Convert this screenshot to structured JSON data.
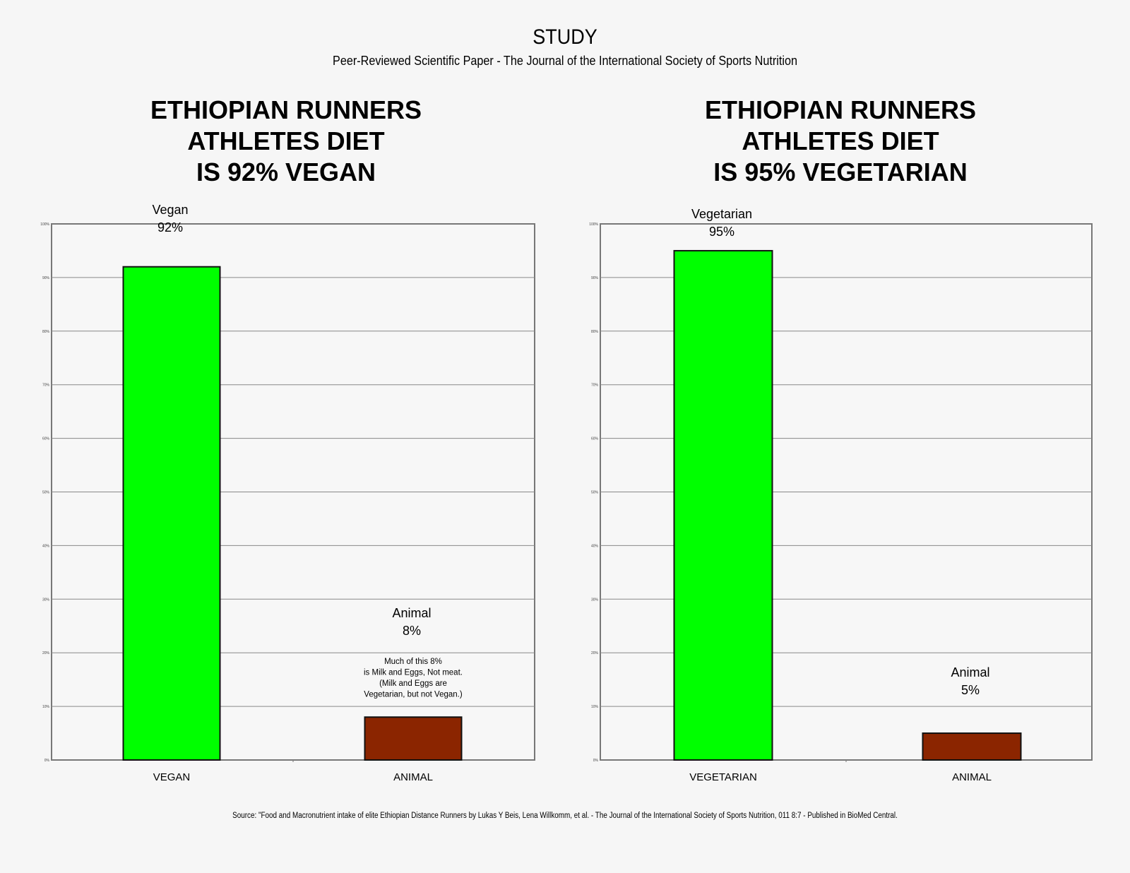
{
  "header": {
    "title": "STUDY",
    "subtitle": "Peer-Reviewed Scientific Paper - The Journal of the International Society of Sports Nutrition"
  },
  "charts": [
    {
      "title_lines": [
        "ETHIOPIAN RUNNERS",
        "ATHLETES DIET",
        "IS 92% VEGAN"
      ]
    },
    {
      "title_lines": [
        "ETHIOPIAN RUNNERS",
        "ATHLETES DIET",
        "IS 95% VEGETARIAN"
      ]
    }
  ],
  "chart_data": [
    {
      "type": "bar",
      "categories": [
        "VEGAN",
        "ANIMAL"
      ],
      "values": [
        92,
        8
      ],
      "ylim": [
        0,
        100
      ],
      "yticks": [
        "0%",
        "10%",
        "20%",
        "30%",
        "40%",
        "50%",
        "60%",
        "70%",
        "80%",
        "90%",
        "100%"
      ],
      "colors": [
        "#00ff00",
        "#8b2500"
      ],
      "data_labels": [
        [
          "Vegan",
          "92%"
        ],
        [
          "Animal",
          "8%"
        ]
      ],
      "annotation": [
        "Much of this 8%",
        "is Milk and Eggs, Not meat.",
        "(Milk and Eggs are",
        "Vegetarian, but not Vegan.)"
      ],
      "grid": true
    },
    {
      "type": "bar",
      "categories": [
        "VEGETARIAN",
        "ANIMAL"
      ],
      "values": [
        95,
        5
      ],
      "ylim": [
        0,
        100
      ],
      "yticks": [
        "0%",
        "10%",
        "20%",
        "30%",
        "40%",
        "50%",
        "60%",
        "70%",
        "80%",
        "90%",
        "100%"
      ],
      "colors": [
        "#00ff00",
        "#8b2500"
      ],
      "data_labels": [
        [
          "Vegetarian",
          "95%"
        ],
        [
          "Animal",
          "5%"
        ]
      ],
      "grid": true
    }
  ],
  "source": "Source: \"Food and Macronutrient intake of elite Ethiopian Distance Runners by Lukas Y Beis, Lena Willkomm, et al. - The Journal of the International Society of Sports Nutrition, 011 8:7 - Published in BioMed Central."
}
